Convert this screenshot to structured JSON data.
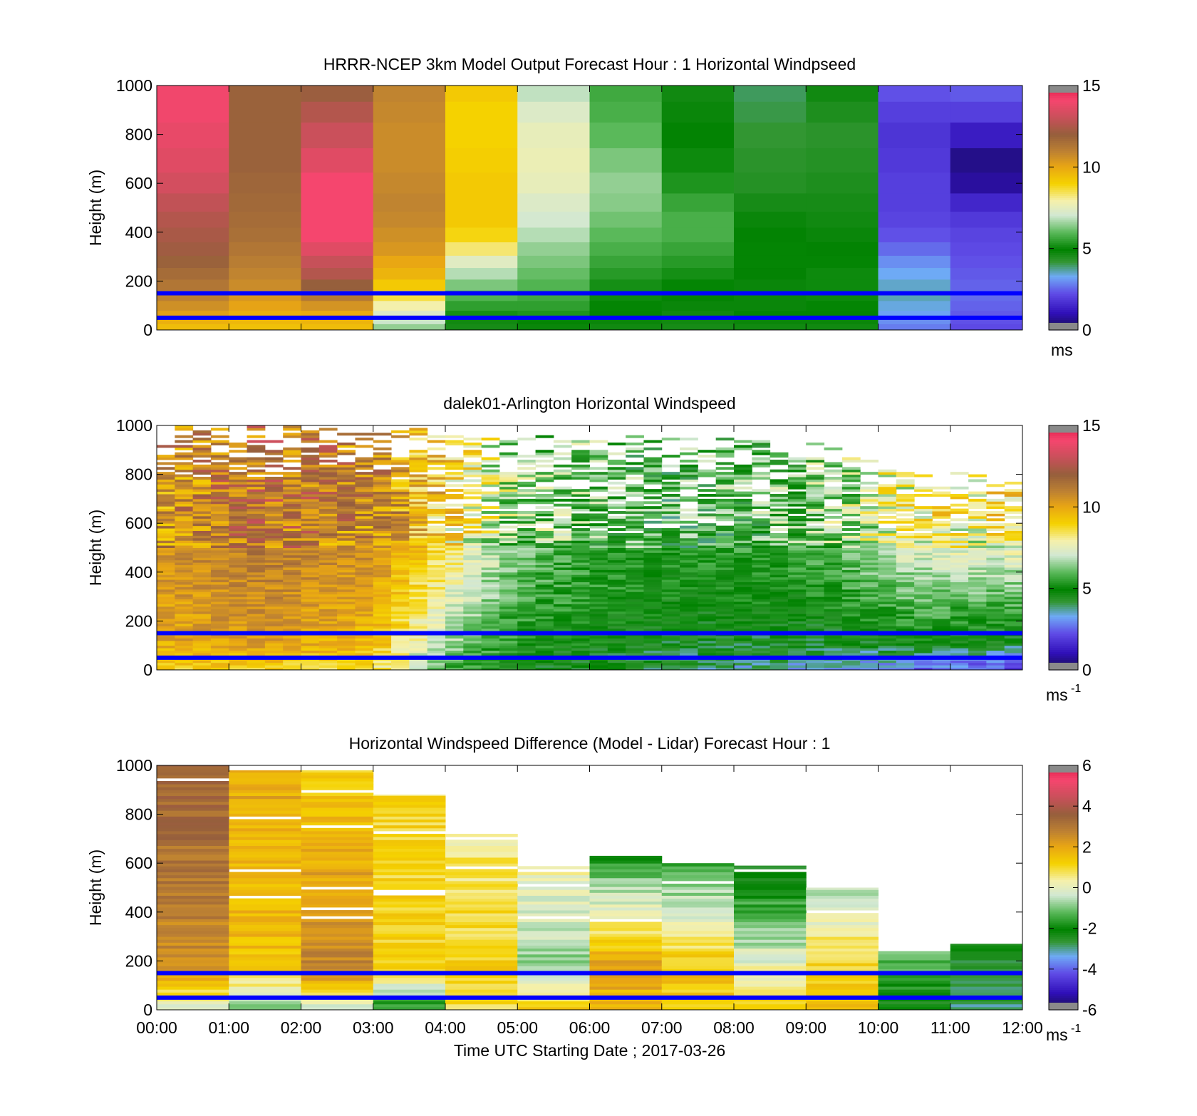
{
  "figure": {
    "xlabel": "Time UTC  Starting Date ; 2017-03-26"
  },
  "chart_data": [
    {
      "type": "heatmap",
      "title": "HRRR-NCEP 3km Model Output   Forecast Hour : 1 Horizontal Windpseed",
      "ylabel": "Height (m)",
      "ylim": [
        0,
        1000
      ],
      "yticks": [
        "0",
        "200",
        "400",
        "600",
        "800",
        "1000"
      ],
      "xlim": [
        "00:00",
        "12:00"
      ],
      "xticks": [
        "00:00",
        "01:00",
        "02:00",
        "03:00",
        "04:00",
        "05:00",
        "06:00",
        "07:00",
        "08:00",
        "09:00",
        "10:00",
        "11:00",
        "12:00"
      ],
      "x_tick_labels_shown": false,
      "colorbar": {
        "min": 0,
        "max": 15,
        "ticks": [
          "0",
          "5",
          "10",
          "15"
        ],
        "unit_label": "ms"
      },
      "reference_lines_m": [
        150,
        50
      ],
      "reference_line_color": "#0000ff",
      "heights_m": [
        15,
        35,
        60,
        100,
        140,
        185,
        230,
        280,
        330,
        390,
        450,
        520,
        600,
        690,
        800,
        900,
        970
      ],
      "columns_hour_start": [
        0,
        1,
        2,
        3,
        4,
        5,
        6,
        7,
        8,
        9,
        10,
        11
      ],
      "values": [
        [
          9.5,
          9.8,
          10.2,
          10.6,
          11.0,
          11.3,
          11.6,
          11.9,
          12.2,
          12.4,
          12.6,
          12.9,
          13.3,
          13.6,
          13.8,
          14.0,
          14.0
        ],
        [
          9.4,
          9.6,
          9.8,
          10.1,
          10.4,
          10.7,
          10.9,
          11.1,
          11.3,
          11.5,
          11.6,
          11.7,
          11.8,
          11.9,
          11.9,
          11.9,
          11.9
        ],
        [
          9.5,
          9.7,
          9.9,
          10.5,
          11.2,
          12.0,
          12.6,
          13.0,
          13.6,
          14.1,
          14.1,
          14.1,
          14.1,
          13.6,
          13.1,
          12.6,
          12.1
        ],
        [
          6.5,
          7.0,
          7.3,
          7.9,
          8.6,
          9.2,
          9.7,
          10.0,
          10.4,
          10.6,
          10.8,
          10.9,
          10.8,
          10.7,
          10.7,
          10.8,
          10.9
        ],
        [
          4.6,
          4.7,
          5.2,
          5.5,
          5.9,
          6.3,
          6.8,
          7.4,
          8.3,
          8.9,
          9.2,
          9.2,
          9.2,
          9.1,
          9.0,
          9.0,
          9.2
        ],
        [
          4.8,
          5.0,
          5.3,
          5.5,
          5.7,
          5.9,
          6.1,
          6.3,
          6.5,
          6.8,
          7.1,
          7.3,
          7.6,
          7.7,
          7.6,
          7.3,
          6.9
        ],
        [
          4.7,
          4.8,
          4.9,
          5.0,
          5.1,
          5.2,
          5.4,
          5.6,
          5.8,
          6.0,
          6.2,
          6.4,
          6.5,
          6.3,
          6.0,
          5.8,
          5.7
        ],
        [
          4.6,
          4.7,
          4.7,
          4.8,
          4.9,
          5.0,
          5.2,
          5.4,
          5.6,
          5.8,
          5.8,
          5.6,
          5.3,
          5.1,
          4.9,
          4.8,
          4.7
        ],
        [
          4.7,
          4.8,
          4.9,
          4.8,
          4.8,
          4.8,
          4.9,
          5.0,
          5.0,
          4.9,
          4.8,
          4.6,
          4.4,
          4.3,
          4.2,
          4.1,
          4.0
        ],
        [
          4.7,
          4.8,
          4.9,
          5.0,
          5.1,
          5.1,
          5.1,
          5.0,
          4.9,
          4.8,
          4.7,
          4.6,
          4.5,
          4.4,
          4.3,
          4.5,
          4.7
        ],
        [
          2.8,
          3.0,
          3.2,
          3.4,
          3.6,
          3.5,
          3.3,
          3.0,
          2.6,
          2.3,
          2.1,
          2.0,
          2.0,
          1.9,
          1.8,
          2.0,
          2.3
        ],
        [
          2.2,
          2.3,
          2.4,
          2.5,
          2.6,
          2.5,
          2.4,
          2.3,
          2.2,
          2.1,
          1.9,
          1.5,
          0.8,
          0.6,
          1.3,
          2.0,
          2.4
        ]
      ]
    },
    {
      "type": "heatmap",
      "title": "dalek01-Arlington  Horizontal Windspeed",
      "ylabel": "Height (m)",
      "ylim": [
        0,
        1000
      ],
      "yticks": [
        "0",
        "200",
        "400",
        "600",
        "800",
        "1000"
      ],
      "xlim": [
        "00:00",
        "12:00"
      ],
      "xticks": [
        "00:00",
        "01:00",
        "02:00",
        "03:00",
        "04:00",
        "05:00",
        "06:00",
        "07:00",
        "08:00",
        "09:00",
        "10:00",
        "11:00",
        "12:00"
      ],
      "x_tick_labels_shown": false,
      "colorbar": {
        "min": 0,
        "max": 15,
        "ticks": [
          "0",
          "5",
          "10",
          "15"
        ],
        "unit_label": "ms",
        "unit_exponent": "-1"
      },
      "reference_lines_m": [
        150,
        50
      ],
      "reference_line_color": "#0000ff",
      "time_step_minutes": 15,
      "profile_keyframes": [
        {
          "hour": 0.0,
          "surface": 9.0,
          "mid": 10.0,
          "upper": 10.5,
          "top_data_m": 1000
        },
        {
          "hour": 1.5,
          "surface": 9.0,
          "mid": 10.3,
          "upper": 11.5,
          "top_data_m": 1000
        },
        {
          "hour": 3.0,
          "surface": 8.6,
          "mid": 9.6,
          "upper": 10.8,
          "top_data_m": 1000
        },
        {
          "hour": 4.0,
          "surface": 5.5,
          "mid": 6.8,
          "upper": 9.0,
          "top_data_m": 980
        },
        {
          "hour": 5.0,
          "surface": 4.8,
          "mid": 5.2,
          "upper": 6.5,
          "top_data_m": 960
        },
        {
          "hour": 7.0,
          "surface": 4.0,
          "mid": 4.6,
          "upper": 5.5,
          "top_data_m": 960
        },
        {
          "hour": 9.0,
          "surface": 3.3,
          "mid": 4.4,
          "upper": 6.0,
          "top_data_m": 940
        },
        {
          "hour": 10.5,
          "surface": 2.5,
          "mid": 5.0,
          "upper": 8.0,
          "top_data_m": 800
        },
        {
          "hour": 12.0,
          "surface": 2.0,
          "mid": 4.5,
          "upper": 8.5,
          "top_data_m": 820
        }
      ]
    },
    {
      "type": "heatmap",
      "title": "Horizontal Windspeed Difference (Model - Lidar) Forecast Hour : 1",
      "ylabel": "Height (m)",
      "ylim": [
        0,
        1000
      ],
      "yticks": [
        "0",
        "200",
        "400",
        "600",
        "800",
        "1000"
      ],
      "xlim": [
        "00:00",
        "12:00"
      ],
      "xticks": [
        "00:00",
        "01:00",
        "02:00",
        "03:00",
        "04:00",
        "05:00",
        "06:00",
        "07:00",
        "08:00",
        "09:00",
        "10:00",
        "11:00",
        "12:00"
      ],
      "x_tick_labels_shown": true,
      "colorbar": {
        "min": -6,
        "max": 6,
        "ticks": [
          "-6",
          "-4",
          "-2",
          "0",
          "2",
          "4",
          "6"
        ],
        "unit_label": "ms",
        "unit_exponent": "-1"
      },
      "reference_lines_m": [
        150,
        50
      ],
      "reference_line_color": "#0000ff",
      "columns": [
        {
          "hour": 0,
          "top_m": 1000,
          "bottom_value": -0.5,
          "mid_value": 2.5,
          "top_value": 3.5
        },
        {
          "hour": 1,
          "top_m": 980,
          "bottom_value": -1.5,
          "mid_value": 1.5,
          "top_value": 2.0
        },
        {
          "hour": 2,
          "top_m": 980,
          "bottom_value": -0.5,
          "mid_value": 2.8,
          "top_value": 1.2
        },
        {
          "hour": 3,
          "top_m": 880,
          "bottom_value": -2.0,
          "mid_value": 1.2,
          "top_value": 1.0
        },
        {
          "hour": 4,
          "top_m": 720,
          "bottom_value": 1.0,
          "mid_value": 1.2,
          "top_value": 0.5
        },
        {
          "hour": 5,
          "top_m": 590,
          "bottom_value": 1.5,
          "mid_value": -0.8,
          "top_value": 0.2
        },
        {
          "hour": 6,
          "top_m": 630,
          "bottom_value": 1.5,
          "mid_value": 2.2,
          "top_value": -1.8
        },
        {
          "hour": 7,
          "top_m": 600,
          "bottom_value": 1.2,
          "mid_value": 1.5,
          "top_value": -1.5
        },
        {
          "hour": 8,
          "top_m": 590,
          "bottom_value": 1.2,
          "mid_value": 0.2,
          "top_value": -2.5
        },
        {
          "hour": 9,
          "top_m": 500,
          "bottom_value": 1.5,
          "mid_value": 1.2,
          "top_value": -0.6
        },
        {
          "hour": 10,
          "top_m": 240,
          "bottom_value": -2.3,
          "mid_value": -1.5,
          "top_value": -1.2
        },
        {
          "hour": 11,
          "top_m": 270,
          "bottom_value": -2.8,
          "mid_value": -2.6,
          "top_value": -2.2
        }
      ]
    }
  ]
}
